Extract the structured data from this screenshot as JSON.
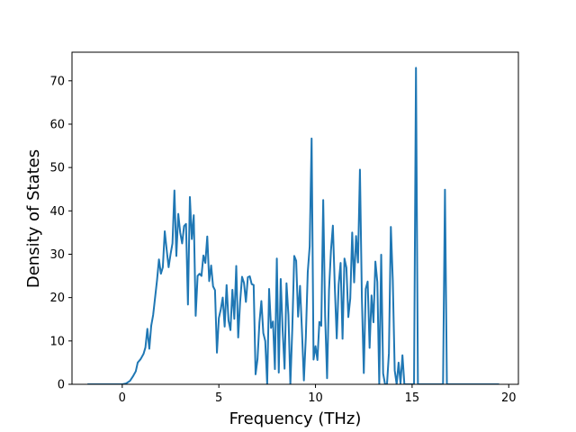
{
  "chart_data": {
    "type": "line",
    "title": "",
    "xlabel": "Frequency (THz)",
    "ylabel": "Density of States",
    "xlim": [
      -2.6,
      20.5
    ],
    "ylim": [
      0,
      76.6
    ],
    "xticks": [
      0,
      5,
      10,
      15,
      20
    ],
    "yticks": [
      0,
      10,
      20,
      30,
      40,
      50,
      60,
      70
    ],
    "grid": false,
    "legend": "none",
    "series": [
      {
        "color": "#1f77b4",
        "points": [
          [
            -1.8,
            0
          ],
          [
            -1.0,
            0
          ],
          [
            -0.5,
            0
          ],
          [
            0.0,
            0
          ],
          [
            0.2,
            0.2
          ],
          [
            0.4,
            0.8
          ],
          [
            0.55,
            1.8
          ],
          [
            0.7,
            3.0
          ],
          [
            0.8,
            5.0
          ],
          [
            0.95,
            5.8
          ],
          [
            1.1,
            7.0
          ],
          [
            1.2,
            8.5
          ],
          [
            1.3,
            12.8
          ],
          [
            1.4,
            8.2
          ],
          [
            1.5,
            13.5
          ],
          [
            1.6,
            16.0
          ],
          [
            1.7,
            20.0
          ],
          [
            1.8,
            24.0
          ],
          [
            1.9,
            28.8
          ],
          [
            2.0,
            25.5
          ],
          [
            2.1,
            27.0
          ],
          [
            2.2,
            35.3
          ],
          [
            2.3,
            31.0
          ],
          [
            2.4,
            27.0
          ],
          [
            2.5,
            30.0
          ],
          [
            2.6,
            32.5
          ],
          [
            2.7,
            44.7
          ],
          [
            2.8,
            29.6
          ],
          [
            2.9,
            39.3
          ],
          [
            3.0,
            35.0
          ],
          [
            3.1,
            32.5
          ],
          [
            3.2,
            36.5
          ],
          [
            3.3,
            37.0
          ],
          [
            3.4,
            18.4
          ],
          [
            3.5,
            43.2
          ],
          [
            3.6,
            33.5
          ],
          [
            3.7,
            39.0
          ],
          [
            3.8,
            15.8
          ],
          [
            3.9,
            25.0
          ],
          [
            4.0,
            25.5
          ],
          [
            4.1,
            25.0
          ],
          [
            4.2,
            29.7
          ],
          [
            4.3,
            28.0
          ],
          [
            4.4,
            34.1
          ],
          [
            4.5,
            23.8
          ],
          [
            4.6,
            27.4
          ],
          [
            4.7,
            22.6
          ],
          [
            4.8,
            21.7
          ],
          [
            4.9,
            7.3
          ],
          [
            5.0,
            15.3
          ],
          [
            5.1,
            17.3
          ],
          [
            5.2,
            20.0
          ],
          [
            5.3,
            13.3
          ],
          [
            5.4,
            22.9
          ],
          [
            5.5,
            14.7
          ],
          [
            5.6,
            12.5
          ],
          [
            5.7,
            21.8
          ],
          [
            5.8,
            15.1
          ],
          [
            5.9,
            27.3
          ],
          [
            6.0,
            10.8
          ],
          [
            6.1,
            19.0
          ],
          [
            6.2,
            24.8
          ],
          [
            6.3,
            23.4
          ],
          [
            6.4,
            19.0
          ],
          [
            6.5,
            24.7
          ],
          [
            6.6,
            24.9
          ],
          [
            6.7,
            23.1
          ],
          [
            6.8,
            22.9
          ],
          [
            6.9,
            2.3
          ],
          [
            7.0,
            5.8
          ],
          [
            7.1,
            14.3
          ],
          [
            7.2,
            19.2
          ],
          [
            7.3,
            11.8
          ],
          [
            7.4,
            10.0
          ],
          [
            7.5,
            0
          ],
          [
            7.6,
            22.0
          ],
          [
            7.7,
            13.0
          ],
          [
            7.8,
            14.5
          ],
          [
            7.9,
            3.5
          ],
          [
            8.0,
            29.0
          ],
          [
            8.1,
            2.7
          ],
          [
            8.2,
            24.3
          ],
          [
            8.3,
            12.5
          ],
          [
            8.4,
            3.6
          ],
          [
            8.5,
            23.3
          ],
          [
            8.6,
            16.0
          ],
          [
            8.7,
            0
          ],
          [
            8.8,
            12.8
          ],
          [
            8.9,
            29.6
          ],
          [
            9.0,
            28.5
          ],
          [
            9.1,
            15.6
          ],
          [
            9.2,
            22.7
          ],
          [
            9.3,
            12.3
          ],
          [
            9.4,
            0.9
          ],
          [
            9.5,
            10.9
          ],
          [
            9.6,
            25.9
          ],
          [
            9.7,
            31.8
          ],
          [
            9.8,
            56.7
          ],
          [
            9.9,
            5.7
          ],
          [
            10.0,
            8.8
          ],
          [
            10.1,
            5.6
          ],
          [
            10.2,
            14.4
          ],
          [
            10.3,
            13.5
          ],
          [
            10.4,
            42.5
          ],
          [
            10.5,
            15.6
          ],
          [
            10.6,
            1.4
          ],
          [
            10.7,
            21.7
          ],
          [
            10.8,
            30.8
          ],
          [
            10.9,
            36.6
          ],
          [
            11.0,
            22.4
          ],
          [
            11.1,
            10.6
          ],
          [
            11.2,
            23.0
          ],
          [
            11.3,
            28.0
          ],
          [
            11.4,
            10.5
          ],
          [
            11.5,
            29.0
          ],
          [
            11.6,
            26.9
          ],
          [
            11.7,
            15.5
          ],
          [
            11.8,
            19.8
          ],
          [
            11.9,
            35.0
          ],
          [
            12.0,
            23.5
          ],
          [
            12.1,
            34.2
          ],
          [
            12.2,
            28.1
          ],
          [
            12.3,
            49.5
          ],
          [
            12.4,
            20.0
          ],
          [
            12.5,
            2.6
          ],
          [
            12.6,
            22.0
          ],
          [
            12.7,
            23.7
          ],
          [
            12.8,
            8.4
          ],
          [
            12.9,
            20.5
          ],
          [
            13.0,
            14.3
          ],
          [
            13.1,
            28.3
          ],
          [
            13.2,
            23.6
          ],
          [
            13.3,
            0
          ],
          [
            13.4,
            29.9
          ],
          [
            13.5,
            2.5
          ],
          [
            13.6,
            0
          ],
          [
            13.7,
            0
          ],
          [
            13.8,
            7.2
          ],
          [
            13.9,
            36.3
          ],
          [
            14.0,
            24.0
          ],
          [
            14.1,
            3.2
          ],
          [
            14.2,
            0
          ],
          [
            14.3,
            5.0
          ],
          [
            14.4,
            0.2
          ],
          [
            14.5,
            6.7
          ],
          [
            14.6,
            0
          ],
          [
            14.7,
            0
          ],
          [
            14.8,
            0
          ],
          [
            15.0,
            0
          ],
          [
            15.1,
            0
          ],
          [
            15.2,
            73.0
          ],
          [
            15.3,
            0
          ],
          [
            15.5,
            0
          ],
          [
            16.0,
            0
          ],
          [
            16.5,
            0
          ],
          [
            16.6,
            0
          ],
          [
            16.7,
            44.9
          ],
          [
            16.8,
            0
          ],
          [
            17.0,
            0
          ],
          [
            18.0,
            0
          ],
          [
            19.0,
            0
          ],
          [
            19.5,
            0
          ]
        ]
      }
    ]
  }
}
